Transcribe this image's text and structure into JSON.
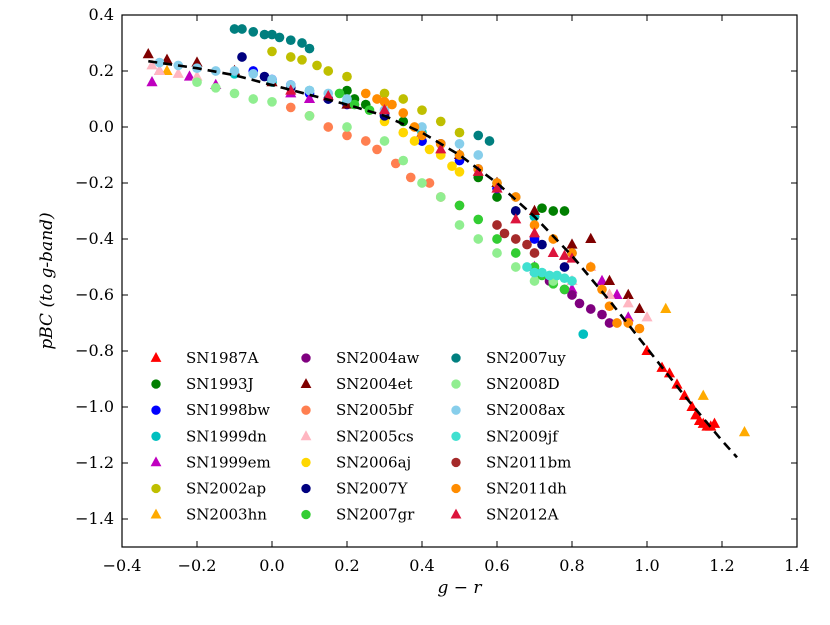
{
  "chart_data": {
    "type": "scatter",
    "title": "",
    "xlabel": "g − r",
    "ylabel": "pBC (to g-band)",
    "xlim": [
      -0.4,
      1.4
    ],
    "ylim": [
      -1.5,
      0.4
    ],
    "xticks": [
      -0.4,
      -0.2,
      0.0,
      0.2,
      0.4,
      0.6,
      0.8,
      1.0,
      1.2,
      1.4
    ],
    "xtick_labels": [
      "−0.4",
      "−0.2",
      "0.0",
      "0.2",
      "0.4",
      "0.6",
      "0.8",
      "1.0",
      "1.2",
      "1.4"
    ],
    "yticks": [
      0.4,
      0.2,
      0.0,
      -0.2,
      -0.4,
      -0.6,
      -0.8,
      -1.0,
      -1.2,
      -1.4
    ],
    "ytick_labels": [
      "0.4",
      "0.2",
      "0.0",
      "−0.2",
      "−0.4",
      "−0.6",
      "−0.8",
      "−1.0",
      "−1.2",
      "−1.4"
    ],
    "grid": false,
    "legend_position": "bottom-left",
    "fit_line": {
      "name": "polynomial fit",
      "style": "dashed",
      "color": "#000000",
      "x": [
        -0.33,
        -0.2,
        -0.1,
        0.0,
        0.1,
        0.2,
        0.3,
        0.4,
        0.5,
        0.6,
        0.7,
        0.8,
        0.9,
        1.0,
        1.1,
        1.2,
        1.24
      ],
      "y": [
        0.235,
        0.21,
        0.185,
        0.15,
        0.115,
        0.08,
        0.04,
        -0.02,
        -0.1,
        -0.2,
        -0.32,
        -0.46,
        -0.62,
        -0.79,
        -0.96,
        -1.12,
        -1.18
      ]
    },
    "series": [
      {
        "name": "SN1987A",
        "marker": "triangle",
        "color": "#ff0000",
        "points": [
          [
            1.0,
            -0.8
          ],
          [
            1.04,
            -0.86
          ],
          [
            1.08,
            -0.92
          ],
          [
            1.1,
            -0.96
          ],
          [
            1.12,
            -1.0
          ],
          [
            1.13,
            -1.03
          ],
          [
            1.14,
            -1.05
          ],
          [
            1.15,
            -1.06
          ],
          [
            1.16,
            -1.07
          ],
          [
            1.17,
            -1.07
          ],
          [
            1.18,
            -1.06
          ],
          [
            1.06,
            -0.88
          ]
        ]
      },
      {
        "name": "SN1993J",
        "marker": "circle",
        "color": "#007f00",
        "points": [
          [
            0.2,
            0.13
          ],
          [
            0.22,
            0.1
          ],
          [
            0.25,
            0.08
          ],
          [
            0.3,
            0.05
          ],
          [
            0.35,
            0.02
          ],
          [
            0.4,
            -0.05
          ],
          [
            0.6,
            -0.25
          ],
          [
            0.65,
            -0.3
          ],
          [
            0.7,
            -0.32
          ],
          [
            0.72,
            -0.29
          ],
          [
            0.75,
            -0.3
          ],
          [
            0.78,
            -0.3
          ],
          [
            0.55,
            -0.18
          ]
        ]
      },
      {
        "name": "SN1998bw",
        "marker": "circle",
        "color": "#0000ff",
        "points": [
          [
            -0.05,
            0.2
          ],
          [
            0.0,
            0.17
          ],
          [
            0.05,
            0.15
          ],
          [
            0.1,
            0.12
          ],
          [
            0.15,
            0.1
          ],
          [
            0.2,
            0.08
          ],
          [
            0.3,
            0.05
          ],
          [
            0.4,
            -0.05
          ],
          [
            0.5,
            -0.12
          ],
          [
            0.6,
            -0.22
          ],
          [
            0.7,
            -0.4
          ]
        ]
      },
      {
        "name": "SN1999dn",
        "marker": "circle",
        "color": "#00bfbf",
        "points": [
          [
            -0.1,
            0.19
          ],
          [
            0.0,
            0.16
          ],
          [
            0.1,
            0.13
          ],
          [
            0.2,
            0.09
          ],
          [
            0.3,
            0.04
          ],
          [
            0.4,
            -0.02
          ],
          [
            0.5,
            -0.1
          ],
          [
            0.6,
            -0.2
          ],
          [
            0.7,
            -0.32
          ],
          [
            0.8,
            -0.45
          ],
          [
            0.83,
            -0.74
          ]
        ]
      },
      {
        "name": "SN1999em",
        "marker": "triangle",
        "color": "#bf00bf",
        "points": [
          [
            -0.32,
            0.16
          ],
          [
            -0.3,
            0.2
          ],
          [
            -0.22,
            0.18
          ],
          [
            -0.15,
            0.15
          ],
          [
            0.05,
            0.12
          ],
          [
            0.1,
            0.1
          ],
          [
            0.7,
            -0.5
          ],
          [
            0.8,
            -0.58
          ],
          [
            0.88,
            -0.55
          ],
          [
            0.92,
            -0.6
          ],
          [
            0.95,
            -0.68
          ]
        ]
      },
      {
        "name": "SN2002ap",
        "marker": "circle",
        "color": "#bfbf00",
        "points": [
          [
            0.0,
            0.27
          ],
          [
            0.05,
            0.25
          ],
          [
            0.08,
            0.24
          ],
          [
            0.12,
            0.22
          ],
          [
            0.15,
            0.2
          ],
          [
            0.2,
            0.18
          ],
          [
            0.3,
            0.12
          ],
          [
            0.35,
            0.1
          ],
          [
            0.4,
            0.06
          ],
          [
            0.45,
            0.02
          ],
          [
            0.5,
            -0.02
          ]
        ]
      },
      {
        "name": "SN2003hn",
        "marker": "triangle",
        "color": "#ffaa00",
        "points": [
          [
            -0.28,
            0.2
          ],
          [
            1.05,
            -0.65
          ],
          [
            1.26,
            -1.09
          ],
          [
            1.15,
            -0.96
          ],
          [
            0.9,
            -0.6
          ],
          [
            0.6,
            -0.2
          ]
        ]
      },
      {
        "name": "SN2004aw",
        "marker": "circle",
        "color": "#7f007f",
        "points": [
          [
            0.7,
            -0.52
          ],
          [
            0.74,
            -0.55
          ],
          [
            0.78,
            -0.58
          ],
          [
            0.8,
            -0.6
          ],
          [
            0.82,
            -0.63
          ],
          [
            0.85,
            -0.65
          ],
          [
            0.88,
            -0.67
          ],
          [
            0.9,
            -0.7
          ]
        ]
      },
      {
        "name": "SN2004et",
        "marker": "triangle",
        "color": "#7f0000",
        "points": [
          [
            -0.33,
            0.26
          ],
          [
            -0.28,
            0.24
          ],
          [
            -0.2,
            0.23
          ],
          [
            -0.1,
            0.2
          ],
          [
            0.0,
            0.16
          ],
          [
            0.2,
            0.08
          ],
          [
            0.4,
            -0.02
          ],
          [
            0.5,
            -0.1
          ],
          [
            0.6,
            -0.2
          ],
          [
            0.7,
            -0.3
          ],
          [
            0.8,
            -0.42
          ],
          [
            0.85,
            -0.4
          ],
          [
            0.9,
            -0.55
          ],
          [
            0.95,
            -0.6
          ],
          [
            0.98,
            -0.65
          ]
        ]
      },
      {
        "name": "SN2005bf",
        "marker": "circle",
        "color": "#ff7f50",
        "points": [
          [
            0.05,
            0.07
          ],
          [
            0.1,
            0.04
          ],
          [
            0.15,
            0.0
          ],
          [
            0.2,
            -0.03
          ],
          [
            0.25,
            -0.05
          ],
          [
            0.28,
            -0.08
          ],
          [
            0.33,
            -0.13
          ],
          [
            0.37,
            -0.18
          ],
          [
            0.42,
            -0.2
          ],
          [
            0.45,
            -0.25
          ],
          [
            0.5,
            -0.28
          ]
        ]
      },
      {
        "name": "SN2005cs",
        "marker": "triangle",
        "color": "#ffb6c1",
        "points": [
          [
            -0.32,
            0.22
          ],
          [
            -0.3,
            0.2
          ],
          [
            -0.25,
            0.19
          ],
          [
            -0.2,
            0.18
          ],
          [
            0.8,
            -0.55
          ],
          [
            0.85,
            -0.5
          ],
          [
            0.9,
            -0.6
          ],
          [
            0.95,
            -0.63
          ],
          [
            1.0,
            -0.68
          ]
        ]
      },
      {
        "name": "SN2006aj",
        "marker": "circle",
        "color": "#ffd700",
        "points": [
          [
            0.3,
            0.02
          ],
          [
            0.35,
            -0.02
          ],
          [
            0.38,
            -0.05
          ],
          [
            0.42,
            -0.08
          ],
          [
            0.45,
            -0.1
          ],
          [
            0.48,
            -0.14
          ],
          [
            0.5,
            -0.16
          ]
        ]
      },
      {
        "name": "SN2007Y",
        "marker": "circle",
        "color": "#00007f",
        "points": [
          [
            -0.08,
            0.25
          ],
          [
            -0.02,
            0.18
          ],
          [
            0.05,
            0.14
          ],
          [
            0.15,
            0.1
          ],
          [
            0.3,
            0.04
          ],
          [
            0.45,
            -0.06
          ],
          [
            0.55,
            -0.15
          ],
          [
            0.65,
            -0.3
          ],
          [
            0.72,
            -0.42
          ],
          [
            0.78,
            -0.5
          ]
        ]
      },
      {
        "name": "SN2007gr",
        "marker": "circle",
        "color": "#32cd32",
        "points": [
          [
            0.18,
            0.12
          ],
          [
            0.22,
            0.08
          ],
          [
            0.26,
            0.06
          ],
          [
            0.5,
            -0.28
          ],
          [
            0.55,
            -0.33
          ],
          [
            0.6,
            -0.4
          ],
          [
            0.65,
            -0.45
          ],
          [
            0.7,
            -0.5
          ],
          [
            0.72,
            -0.53
          ],
          [
            0.75,
            -0.56
          ],
          [
            0.78,
            -0.58
          ]
        ]
      },
      {
        "name": "SN2007uy",
        "marker": "circle",
        "color": "#007f7f",
        "points": [
          [
            -0.1,
            0.35
          ],
          [
            -0.08,
            0.35
          ],
          [
            -0.05,
            0.34
          ],
          [
            -0.02,
            0.33
          ],
          [
            0.0,
            0.33
          ],
          [
            0.02,
            0.32
          ],
          [
            0.05,
            0.31
          ],
          [
            0.08,
            0.3
          ],
          [
            0.1,
            0.28
          ],
          [
            0.55,
            -0.03
          ],
          [
            0.58,
            -0.05
          ]
        ]
      },
      {
        "name": "SN2008D",
        "marker": "circle",
        "color": "#90ee90",
        "points": [
          [
            -0.2,
            0.16
          ],
          [
            -0.15,
            0.14
          ],
          [
            -0.1,
            0.12
          ],
          [
            -0.05,
            0.1
          ],
          [
            0.0,
            0.09
          ],
          [
            0.1,
            0.04
          ],
          [
            0.2,
            0.0
          ],
          [
            0.3,
            -0.05
          ],
          [
            0.35,
            -0.12
          ],
          [
            0.4,
            -0.2
          ],
          [
            0.45,
            -0.25
          ],
          [
            0.5,
            -0.35
          ],
          [
            0.55,
            -0.4
          ],
          [
            0.6,
            -0.45
          ],
          [
            0.65,
            -0.5
          ],
          [
            0.7,
            -0.55
          ],
          [
            0.75,
            -0.55
          ]
        ]
      },
      {
        "name": "SN2008ax",
        "marker": "circle",
        "color": "#87ceeb",
        "points": [
          [
            -0.3,
            0.23
          ],
          [
            -0.25,
            0.22
          ],
          [
            -0.2,
            0.21
          ],
          [
            -0.15,
            0.2
          ],
          [
            -0.1,
            0.2
          ],
          [
            -0.05,
            0.19
          ],
          [
            0.0,
            0.17
          ],
          [
            0.05,
            0.15
          ],
          [
            0.1,
            0.13
          ],
          [
            0.15,
            0.12
          ],
          [
            0.2,
            0.1
          ],
          [
            0.3,
            0.06
          ],
          [
            0.4,
            0.0
          ],
          [
            0.5,
            -0.06
          ],
          [
            0.55,
            -0.1
          ],
          [
            0.6,
            -0.2
          ],
          [
            0.65,
            -0.25
          ]
        ]
      },
      {
        "name": "SN2009jf",
        "marker": "circle",
        "color": "#40e0d0",
        "points": [
          [
            0.68,
            -0.5
          ],
          [
            0.7,
            -0.52
          ],
          [
            0.72,
            -0.52
          ],
          [
            0.74,
            -0.53
          ],
          [
            0.76,
            -0.53
          ],
          [
            0.78,
            -0.54
          ],
          [
            0.8,
            -0.55
          ]
        ]
      },
      {
        "name": "SN2011bm",
        "marker": "circle",
        "color": "#a52a2a",
        "points": [
          [
            0.6,
            -0.35
          ],
          [
            0.62,
            -0.38
          ],
          [
            0.65,
            -0.4
          ],
          [
            0.68,
            -0.42
          ],
          [
            0.7,
            -0.45
          ]
        ]
      },
      {
        "name": "SN2011dh",
        "marker": "circle",
        "color": "#ff8c00",
        "points": [
          [
            0.25,
            0.12
          ],
          [
            0.28,
            0.1
          ],
          [
            0.3,
            0.09
          ],
          [
            0.32,
            0.08
          ],
          [
            0.35,
            0.05
          ],
          [
            0.38,
            0.0
          ],
          [
            0.4,
            -0.03
          ],
          [
            0.45,
            -0.06
          ],
          [
            0.5,
            -0.1
          ],
          [
            0.55,
            -0.15
          ],
          [
            0.6,
            -0.2
          ],
          [
            0.65,
            -0.25
          ],
          [
            0.7,
            -0.35
          ],
          [
            0.75,
            -0.4
          ],
          [
            0.8,
            -0.45
          ],
          [
            0.85,
            -0.5
          ],
          [
            0.88,
            -0.58
          ],
          [
            0.9,
            -0.64
          ],
          [
            0.92,
            -0.7
          ],
          [
            0.95,
            -0.7
          ],
          [
            0.98,
            -0.72
          ]
        ]
      },
      {
        "name": "SN2012A",
        "marker": "triangle",
        "color": "#dc143c",
        "points": [
          [
            0.05,
            0.13
          ],
          [
            0.15,
            0.11
          ],
          [
            0.3,
            0.06
          ],
          [
            0.45,
            -0.08
          ],
          [
            0.55,
            -0.16
          ],
          [
            0.6,
            -0.22
          ],
          [
            0.65,
            -0.33
          ],
          [
            0.7,
            -0.38
          ],
          [
            0.75,
            -0.45
          ],
          [
            0.78,
            -0.46
          ],
          [
            0.8,
            -0.47
          ]
        ]
      }
    ]
  }
}
